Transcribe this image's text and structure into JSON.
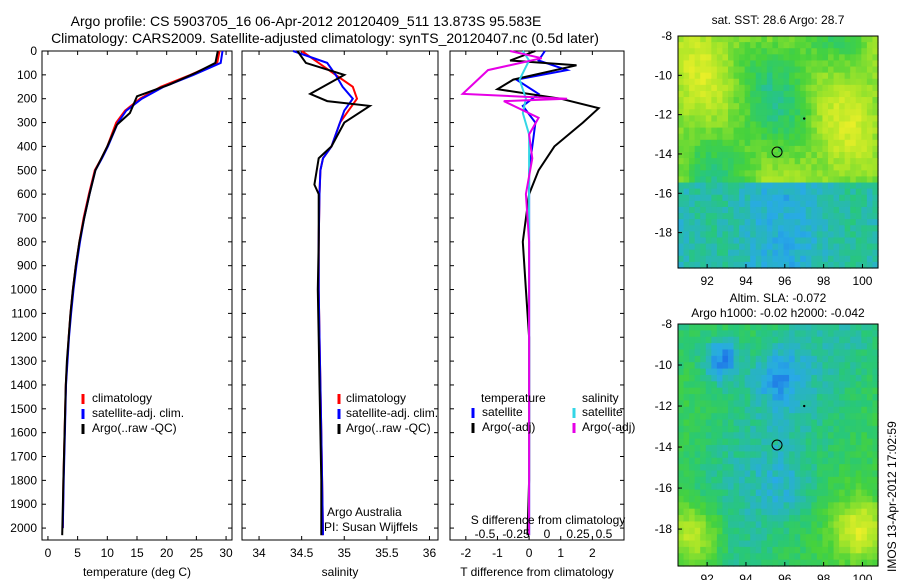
{
  "header": {
    "title_line1": "Argo profile: CS 5903705_16 06-Apr-2012 20120409_511 13.873S 95.583E",
    "title_line2": "Climatology: CARS2009. Satellite-adjusted climatology: synTS_20120407.nc (0.5d later)"
  },
  "colors": {
    "climatology": "#ff0000",
    "satellite": "#0000ff",
    "argo": "#000000",
    "salinity_satellite": "#33d6e6",
    "salinity_argo": "#e600e6"
  },
  "chart_data": [
    {
      "type": "line",
      "name": "temperature-profile",
      "xlabel": "temperature (deg C)",
      "ylabel": "",
      "xlim": [
        -1,
        31
      ],
      "ylim": [
        2050,
        0
      ],
      "xticks": [
        0,
        5,
        10,
        15,
        20,
        25,
        30
      ],
      "yticks": [
        0,
        100,
        200,
        300,
        400,
        500,
        600,
        700,
        800,
        900,
        1000,
        1100,
        1200,
        1300,
        1400,
        1500,
        1600,
        1700,
        1800,
        1900,
        2000
      ],
      "legend": [
        "climatology",
        "satellite-adj. clim.",
        "Argo(..raw -QC)"
      ],
      "legend_position": "bottom-left",
      "series": [
        {
          "name": "climatology",
          "color": "#ff0000",
          "x": [
            28.9,
            28.5,
            24,
            19,
            15.5,
            13,
            11.5,
            10,
            9,
            7.9,
            6.9,
            6,
            5.3,
            4.7,
            4.2,
            3.8,
            3.5,
            3.25,
            3,
            2.8,
            2.6,
            2.5
          ],
          "y": [
            0,
            50,
            100,
            150,
            200,
            250,
            300,
            400,
            450,
            500,
            600,
            700,
            800,
            900,
            1000,
            1100,
            1200,
            1300,
            1400,
            1600,
            1800,
            2000
          ]
        },
        {
          "name": "satellite-adj. clim.",
          "color": "#0000ff",
          "x": [
            29.4,
            29.1,
            24.5,
            19.5,
            15.8,
            13.2,
            11.8,
            10.1,
            9.1,
            8,
            7,
            6.1,
            5.4,
            4.8,
            4.3,
            3.9,
            3.55,
            3.3,
            3.05,
            2.85,
            2.65,
            2.5
          ],
          "y": [
            0,
            50,
            100,
            150,
            200,
            250,
            300,
            400,
            450,
            500,
            600,
            700,
            800,
            900,
            1000,
            1100,
            1200,
            1300,
            1400,
            1600,
            1800,
            2000
          ]
        },
        {
          "name": "Argo(..raw -QC)",
          "color": "#000000",
          "x": [
            28.6,
            28.2,
            25,
            20.5,
            15,
            13.8,
            11.6,
            10,
            9,
            8,
            7,
            6.1,
            5.3,
            4.7,
            4.2,
            3.8,
            3.5,
            3.2,
            3,
            2.8,
            2.6,
            2.4
          ],
          "y": [
            0,
            50,
            90,
            140,
            190,
            260,
            310,
            400,
            450,
            500,
            600,
            700,
            800,
            900,
            1000,
            1100,
            1200,
            1300,
            1400,
            1600,
            1800,
            2030
          ]
        }
      ]
    },
    {
      "type": "line",
      "name": "salinity-profile",
      "xlabel": "salinity",
      "ylabel": "",
      "xlim": [
        33.8,
        36.1
      ],
      "ylim": [
        2050,
        0
      ],
      "xticks": [
        34,
        34.5,
        35,
        35.5,
        36
      ],
      "legend": [
        "climatology",
        "satellite-adj. clim.",
        "Argo(..raw -QC)"
      ],
      "legend_position": "bottom-right",
      "annotation": [
        "Argo Australia",
        "PI: Susan Wijffels"
      ],
      "series": [
        {
          "name": "climatology",
          "color": "#ff0000",
          "x": [
            34.5,
            34.7,
            34.9,
            35.1,
            35.15,
            35.05,
            34.95,
            34.85,
            34.75,
            34.72,
            34.71,
            34.7,
            34.7,
            34.71,
            34.72,
            34.73,
            34.74,
            34.75
          ],
          "y": [
            0,
            50,
            100,
            150,
            200,
            250,
            300,
            400,
            450,
            500,
            600,
            800,
            1000,
            1200,
            1400,
            1600,
            1800,
            2030
          ]
        },
        {
          "name": "satellite-adj. clim.",
          "color": "#0000ff",
          "x": [
            34.4,
            34.8,
            34.9,
            34.98,
            35.1,
            35,
            34.95,
            34.85,
            34.75,
            34.72,
            34.71,
            34.7,
            34.7,
            34.71,
            34.72,
            34.73,
            34.74,
            34.75
          ],
          "y": [
            0,
            50,
            100,
            150,
            200,
            250,
            300,
            400,
            450,
            500,
            600,
            800,
            1000,
            1200,
            1400,
            1600,
            1800,
            2030
          ]
        },
        {
          "name": "Argo(..raw -QC)",
          "color": "#000000",
          "x": [
            34.45,
            34.55,
            35.0,
            34.6,
            34.8,
            35.3,
            35.0,
            34.85,
            34.7,
            34.65,
            34.7,
            34.7,
            34.69,
            34.7,
            34.71,
            34.72,
            34.73,
            34.73
          ],
          "y": [
            0,
            50,
            100,
            180,
            210,
            230,
            300,
            400,
            450,
            560,
            600,
            800,
            1000,
            1200,
            1400,
            1600,
            1800,
            2030
          ]
        }
      ]
    },
    {
      "type": "line",
      "name": "difference-profile",
      "xlabel": "T difference from climatology",
      "xlabel2": "S difference from climatology",
      "xlim": [
        -2.5,
        3
      ],
      "ylim": [
        2050,
        0
      ],
      "xticks": [
        -2,
        -1,
        0,
        1,
        2
      ],
      "xticks_s": [
        -0.5,
        -0.25,
        0,
        0.25,
        0.5
      ],
      "legend": [
        "temperature",
        "satellite",
        "Argo(-adj)",
        "salinity",
        "satellite",
        "Argo(-adj)"
      ],
      "legend_position": "bottom",
      "series": [
        {
          "name": "temperature satellite",
          "color": "#0000ff",
          "x": [
            0.5,
            0.3,
            1.2,
            -0.4,
            0.3,
            -0.2,
            0.2,
            0.1,
            0,
            0,
            0,
            0,
            0,
            0,
            0
          ],
          "y": [
            0,
            40,
            80,
            120,
            180,
            230,
            300,
            400,
            500,
            700,
            900,
            1200,
            1500,
            1800,
            2030
          ]
        },
        {
          "name": "temperature Argo(-adj)",
          "color": "#000000",
          "x": [
            0.2,
            -0.6,
            1.5,
            -0.5,
            -1.0,
            1.0,
            2.2,
            1.7,
            0.8,
            0.3,
            0,
            -0.2,
            -0.1,
            0,
            0,
            0,
            -0.05
          ],
          "y": [
            0,
            40,
            60,
            120,
            160,
            200,
            240,
            300,
            400,
            500,
            600,
            800,
            1000,
            1200,
            1500,
            1800,
            2030
          ]
        },
        {
          "name": "salinity satellite",
          "color": "#33d6e6",
          "x": [
            -0.2,
            0,
            -0.3,
            -0.1,
            -0.2,
            0,
            0,
            0,
            0,
            0,
            0,
            0
          ],
          "y": [
            0,
            40,
            120,
            200,
            260,
            350,
            450,
            600,
            900,
            1200,
            1600,
            2030
          ]
        },
        {
          "name": "salinity Argo(-adj)",
          "color": "#e600e6",
          "x": [
            -0.6,
            0.4,
            -1.3,
            -2.1,
            1.2,
            -0.8,
            0.3,
            0,
            0.1,
            -0.1,
            0,
            0,
            0,
            0
          ],
          "y": [
            0,
            30,
            80,
            180,
            200,
            210,
            280,
            350,
            450,
            600,
            800,
            1200,
            1600,
            2030
          ]
        }
      ]
    },
    {
      "type": "heatmap",
      "name": "sst-map",
      "title": "sat. SST: 28.6  Argo: 28.7",
      "xlim": [
        90.5,
        100.8
      ],
      "ylim": [
        -19.8,
        -8
      ],
      "xticks": [
        92,
        94,
        96,
        98,
        100
      ],
      "yticks": [
        -8,
        -10,
        -12,
        -14,
        -16,
        -18
      ],
      "circle": [
        95.6,
        -13.9
      ],
      "dot": [
        97.0,
        -12.2
      ]
    },
    {
      "type": "heatmap",
      "name": "sla-map",
      "title": "Altim. SLA: -0.072",
      "subtitle": "Argo h1000: -0.02 h2000: -0.042",
      "xlim": [
        90.5,
        100.8
      ],
      "ylim": [
        -19.8,
        -8
      ],
      "xticks": [
        92,
        94,
        96,
        98,
        100
      ],
      "yticks": [
        -8,
        -10,
        -12,
        -14,
        -16,
        -18
      ],
      "circle": [
        95.6,
        -13.9
      ],
      "dot": [
        97.0,
        -12.0
      ]
    }
  ],
  "footer": {
    "stamp": "IMOS 13-Apr-2012 17:02:59"
  }
}
